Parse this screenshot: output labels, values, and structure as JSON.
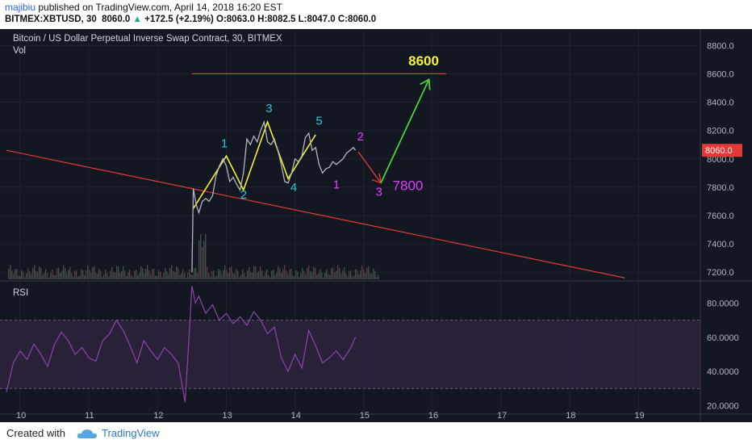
{
  "header": {
    "author": "majibiu",
    "published": "published on TradingView.com, April 14, 2018 16:20 EST",
    "symbol": "BITMEX:XBTUSD, 30",
    "price": "8060.0",
    "change": "+172.5 (+2.19%)",
    "ohlc": "O:8063.0 H:8082.5 L:8047.0 C:8060.0"
  },
  "footer": {
    "created_with": "Created with",
    "brand": "TradingView"
  },
  "colors": {
    "background": "#131722",
    "price_line": "#b2b5be",
    "trendline": "#e53935",
    "zigzag": "#f5f233",
    "wave_labels": "#26c6da",
    "correction_labels": "#e040fb",
    "forecast_up": "#4cd137",
    "rsi_line": "#8e44ad",
    "rsi_band": "#3a2a4a"
  },
  "chart_data": [
    {
      "type": "line",
      "title": "Bitcoin / US Dollar Perpetual Inverse Swap Contract, 30, BITMEX",
      "subtitle": "Vol",
      "xlabel": "",
      "ylabel": "",
      "x_ticks": [
        "10",
        "11",
        "12",
        "13",
        "14",
        "15",
        "16",
        "17",
        "18",
        "19"
      ],
      "y_ticks": [
        "8800.0",
        "8600.0",
        "8400.0",
        "8200.0",
        "8000.0",
        "7800.0",
        "7600.0",
        "7400.0",
        "7200.0"
      ],
      "ylim": [
        7150,
        8870
      ],
      "xlim": [
        9.8,
        19.9
      ],
      "grid": true,
      "last_price": "8060.0",
      "series": [
        {
          "x": [
            12.5,
            12.52,
            12.56,
            12.6,
            12.65,
            12.7,
            12.75,
            12.8,
            12.85,
            12.9,
            12.95,
            13.0,
            13.05,
            13.1,
            13.15,
            13.2,
            13.25,
            13.3,
            13.35,
            13.4,
            13.45,
            13.5,
            13.55,
            13.6,
            13.65,
            13.7,
            13.75,
            13.8,
            13.85,
            13.9,
            13.95,
            14.0,
            14.05,
            14.1,
            14.15,
            14.2,
            14.25,
            14.3,
            14.35,
            14.4,
            14.45,
            14.5,
            14.55,
            14.6,
            14.65,
            14.7,
            14.75,
            14.8,
            14.85,
            14.88
          ],
          "values": [
            7200,
            7790,
            7680,
            7620,
            7700,
            7720,
            7700,
            7740,
            7880,
            7950,
            8000,
            7950,
            7840,
            7870,
            7820,
            7780,
            7900,
            8140,
            8100,
            8160,
            8120,
            8200,
            8260,
            8120,
            8100,
            8140,
            8060,
            7960,
            7840,
            7830,
            7900,
            8000,
            7980,
            8020,
            8150,
            8180,
            8060,
            8080,
            7960,
            7900,
            7930,
            7940,
            7980,
            7960,
            7980,
            8000,
            8040,
            8060,
            8080,
            8060
          ]
        }
      ],
      "annotations": {
        "resistance_line": {
          "x": [
            12.5,
            16.2
          ],
          "y": [
            8600,
            8600
          ]
        },
        "trendline": {
          "x": [
            9.8,
            18.8
          ],
          "y": [
            8060,
            7160
          ]
        },
        "impulse_zigzag": {
          "x": [
            12.52,
            13.0,
            13.25,
            13.6,
            13.9,
            14.3
          ],
          "y": [
            7650,
            8020,
            7780,
            8260,
            7860,
            8170
          ]
        },
        "forecast_down": {
          "x": [
            14.92,
            15.25
          ],
          "y": [
            8050,
            7830
          ]
        },
        "forecast_up": {
          "x": [
            15.25,
            15.95
          ],
          "y": [
            7830,
            8560
          ]
        },
        "target_high_label": "8600",
        "target_low_label": "7800",
        "wave_labels": [
          {
            "text": "1",
            "x": 12.97,
            "y": 8080
          },
          {
            "text": "2",
            "x": 13.25,
            "y": 7720
          },
          {
            "text": "3",
            "x": 13.62,
            "y": 8330
          },
          {
            "text": "4",
            "x": 13.98,
            "y": 7770
          },
          {
            "text": "5",
            "x": 14.35,
            "y": 8240
          }
        ],
        "correction_labels": [
          {
            "text": "1",
            "x": 14.6,
            "y": 7790
          },
          {
            "text": "2",
            "x": 14.95,
            "y": 8130
          },
          {
            "text": "3",
            "x": 15.22,
            "y": 7740
          }
        ]
      }
    },
    {
      "type": "line",
      "title": "RSI",
      "y_ticks": [
        "80.0000",
        "60.0000",
        "40.0000",
        "20.0000"
      ],
      "ylim": [
        16,
        92
      ],
      "band": [
        30,
        70
      ],
      "series": [
        {
          "x": [
            9.8,
            9.9,
            10.0,
            10.1,
            10.2,
            10.3,
            10.4,
            10.5,
            10.6,
            10.7,
            10.8,
            10.9,
            11.0,
            11.1,
            11.2,
            11.3,
            11.4,
            11.5,
            11.6,
            11.7,
            11.8,
            11.9,
            12.0,
            12.1,
            12.2,
            12.3,
            12.4,
            12.45,
            12.5,
            12.55,
            12.6,
            12.7,
            12.8,
            12.9,
            13.0,
            13.1,
            13.2,
            13.3,
            13.4,
            13.5,
            13.6,
            13.7,
            13.8,
            13.9,
            14.0,
            14.1,
            14.2,
            14.3,
            14.4,
            14.5,
            14.6,
            14.7,
            14.8,
            14.88
          ],
          "values": [
            28,
            45,
            52,
            47,
            56,
            50,
            43,
            56,
            63,
            58,
            50,
            54,
            48,
            46,
            58,
            62,
            70,
            64,
            55,
            45,
            58,
            52,
            47,
            54,
            50,
            45,
            22,
            55,
            90,
            80,
            84,
            74,
            79,
            70,
            74,
            68,
            72,
            67,
            75,
            70,
            62,
            66,
            48,
            40,
            50,
            42,
            64,
            55,
            45,
            48,
            52,
            47,
            53,
            60
          ]
        }
      ]
    }
  ]
}
